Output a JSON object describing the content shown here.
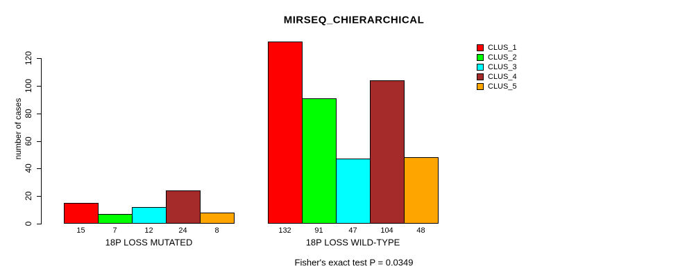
{
  "chart_data": {
    "type": "bar",
    "title": "MIRSEQ_CHIERARCHICAL",
    "ylabel": "number of cases",
    "ylim": [
      0,
      120
    ],
    "yticks": [
      0,
      20,
      40,
      60,
      80,
      100,
      120
    ],
    "grid": false,
    "legend_position": "top-right",
    "categories": [
      "18P LOSS MUTATED",
      "18P LOSS WILD-TYPE"
    ],
    "series": [
      {
        "name": "CLUS_1",
        "color": "#ff0000",
        "values": [
          15,
          132
        ]
      },
      {
        "name": "CLUS_2",
        "color": "#00ff00",
        "values": [
          7,
          91
        ]
      },
      {
        "name": "CLUS_3",
        "color": "#00ffff",
        "values": [
          12,
          47
        ]
      },
      {
        "name": "CLUS_4",
        "color": "#a52a2a",
        "values": [
          24,
          104
        ]
      },
      {
        "name": "CLUS_5",
        "color": "#ffa500",
        "values": [
          8,
          48
        ]
      }
    ],
    "bar_value_labels": [
      [
        15,
        7,
        12,
        24,
        8
      ],
      [
        132,
        91,
        47,
        104,
        48
      ]
    ],
    "footnote": "Fisher's exact test P = 0.0349"
  }
}
